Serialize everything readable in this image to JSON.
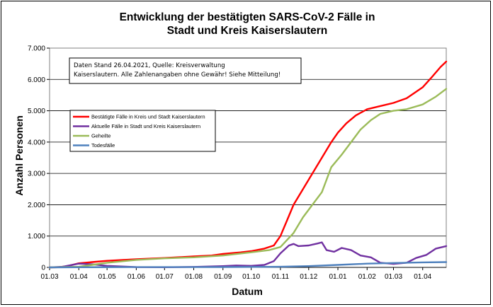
{
  "chart_data": {
    "type": "line",
    "title_lines": [
      "Entwicklung der bestätigten SARS-CoV-2 Fälle in",
      "Stadt und Kreis Kaiserslautern"
    ],
    "xlabel": "Datum",
    "ylabel": "Anzahl Personen",
    "ylim": [
      0,
      7000
    ],
    "yticks": [
      0,
      1000,
      2000,
      3000,
      4000,
      5000,
      6000,
      7000
    ],
    "ytick_labels": [
      "0",
      "1.000",
      "2.000",
      "3.000",
      "4.000",
      "5.000",
      "6.000",
      "7.000"
    ],
    "xlim": [
      "2020-03-01",
      "2021-04-26"
    ],
    "xticks": [
      "2020-03-01",
      "2020-04-01",
      "2020-05-01",
      "2020-06-01",
      "2020-07-01",
      "2020-08-01",
      "2020-09-01",
      "2020-10-01",
      "2020-11-01",
      "2020-12-01",
      "2021-01-01",
      "2021-02-01",
      "2021-03-01",
      "2021-04-01"
    ],
    "xtick_labels": [
      "01.03",
      "01.04",
      "01.05",
      "01.06",
      "01.07",
      "01.08",
      "01.09",
      "01.10",
      "01.11",
      "01.12",
      "01.01",
      "01.02",
      "01.03",
      "01.04"
    ],
    "grid": "horizontal",
    "legend_position": "upper-left",
    "annotation": [
      "Daten Stand 26.04.2021, Quelle: Kreisverwaltung",
      "Kaiserslautern. Alle Zahlenangaben ohne Gewähr! Siehe Mitteilung!"
    ],
    "series": [
      {
        "name": "Bestätigte Fälle in Kreis und Stadt Kaiserslautern",
        "color": "#ff0000",
        "points": [
          [
            "2020-03-01",
            0
          ],
          [
            "2020-03-10",
            5
          ],
          [
            "2020-03-20",
            40
          ],
          [
            "2020-04-01",
            130
          ],
          [
            "2020-04-15",
            170
          ],
          [
            "2020-05-01",
            210
          ],
          [
            "2020-06-01",
            260
          ],
          [
            "2020-07-01",
            300
          ],
          [
            "2020-08-01",
            350
          ],
          [
            "2020-08-20",
            380
          ],
          [
            "2020-09-01",
            430
          ],
          [
            "2020-09-20",
            480
          ],
          [
            "2020-10-01",
            520
          ],
          [
            "2020-10-15",
            600
          ],
          [
            "2020-10-25",
            700
          ],
          [
            "2020-11-01",
            1000
          ],
          [
            "2020-11-08",
            1500
          ],
          [
            "2020-11-15",
            2000
          ],
          [
            "2020-11-25",
            2500
          ],
          [
            "2020-12-05",
            3000
          ],
          [
            "2020-12-15",
            3500
          ],
          [
            "2020-12-25",
            4000
          ],
          [
            "2021-01-01",
            4300
          ],
          [
            "2021-01-10",
            4600
          ],
          [
            "2021-01-20",
            4850
          ],
          [
            "2021-02-01",
            5050
          ],
          [
            "2021-02-15",
            5150
          ],
          [
            "2021-03-01",
            5250
          ],
          [
            "2021-03-15",
            5400
          ],
          [
            "2021-04-01",
            5750
          ],
          [
            "2021-04-10",
            6050
          ],
          [
            "2021-04-20",
            6400
          ],
          [
            "2021-04-26",
            6570
          ]
        ]
      },
      {
        "name": "Aktuelle Fälle in Stadt und Kreis Kaiserslautern",
        "color": "#7030a0",
        "points": [
          [
            "2020-03-01",
            0
          ],
          [
            "2020-03-15",
            20
          ],
          [
            "2020-04-01",
            120
          ],
          [
            "2020-04-15",
            100
          ],
          [
            "2020-05-01",
            50
          ],
          [
            "2020-06-01",
            10
          ],
          [
            "2020-07-01",
            5
          ],
          [
            "2020-08-01",
            15
          ],
          [
            "2020-09-01",
            40
          ],
          [
            "2020-09-15",
            60
          ],
          [
            "2020-10-01",
            50
          ],
          [
            "2020-10-15",
            80
          ],
          [
            "2020-10-25",
            200
          ],
          [
            "2020-11-01",
            450
          ],
          [
            "2020-11-10",
            700
          ],
          [
            "2020-11-15",
            750
          ],
          [
            "2020-11-20",
            680
          ],
          [
            "2020-12-01",
            700
          ],
          [
            "2020-12-10",
            760
          ],
          [
            "2020-12-15",
            800
          ],
          [
            "2020-12-20",
            550
          ],
          [
            "2020-12-28",
            500
          ],
          [
            "2021-01-05",
            620
          ],
          [
            "2021-01-15",
            550
          ],
          [
            "2021-01-25",
            380
          ],
          [
            "2021-02-05",
            320
          ],
          [
            "2021-02-15",
            150
          ],
          [
            "2021-03-01",
            110
          ],
          [
            "2021-03-15",
            150
          ],
          [
            "2021-03-25",
            300
          ],
          [
            "2021-04-05",
            400
          ],
          [
            "2021-04-15",
            600
          ],
          [
            "2021-04-26",
            680
          ]
        ]
      },
      {
        "name": "Geheilte",
        "color": "#9bbb59",
        "points": [
          [
            "2020-03-01",
            0
          ],
          [
            "2020-04-01",
            20
          ],
          [
            "2020-04-15",
            80
          ],
          [
            "2020-05-01",
            150
          ],
          [
            "2020-06-01",
            240
          ],
          [
            "2020-07-01",
            290
          ],
          [
            "2020-08-01",
            320
          ],
          [
            "2020-09-01",
            380
          ],
          [
            "2020-10-01",
            480
          ],
          [
            "2020-10-20",
            550
          ],
          [
            "2020-11-01",
            650
          ],
          [
            "2020-11-15",
            1100
          ],
          [
            "2020-11-25",
            1600
          ],
          [
            "2020-12-05",
            2000
          ],
          [
            "2020-12-15",
            2400
          ],
          [
            "2020-12-25",
            3200
          ],
          [
            "2021-01-05",
            3600
          ],
          [
            "2021-01-15",
            4000
          ],
          [
            "2021-01-25",
            4400
          ],
          [
            "2021-02-05",
            4700
          ],
          [
            "2021-02-15",
            4900
          ],
          [
            "2021-03-01",
            5000
          ],
          [
            "2021-03-15",
            5050
          ],
          [
            "2021-04-01",
            5200
          ],
          [
            "2021-04-15",
            5450
          ],
          [
            "2021-04-26",
            5700
          ]
        ]
      },
      {
        "name": "Todesfälle",
        "color": "#4f81bd",
        "points": [
          [
            "2020-03-01",
            0
          ],
          [
            "2020-04-01",
            5
          ],
          [
            "2020-06-01",
            10
          ],
          [
            "2020-09-01",
            12
          ],
          [
            "2020-11-01",
            20
          ],
          [
            "2020-12-01",
            40
          ],
          [
            "2021-01-01",
            80
          ],
          [
            "2021-02-01",
            120
          ],
          [
            "2021-03-01",
            140
          ],
          [
            "2021-04-01",
            160
          ],
          [
            "2021-04-26",
            170
          ]
        ]
      }
    ]
  }
}
